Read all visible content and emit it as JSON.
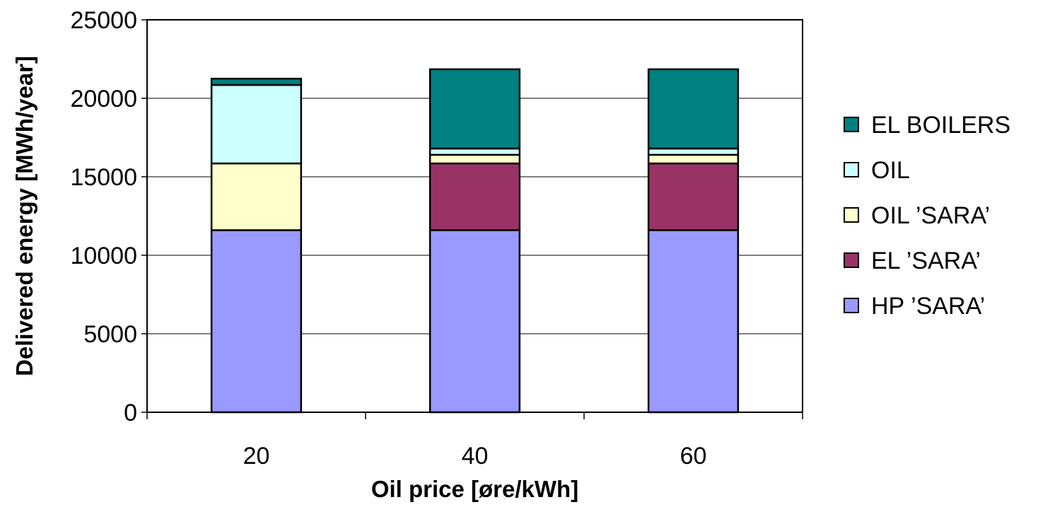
{
  "chart_data": {
    "type": "bar",
    "stacked": true,
    "categories": [
      "20",
      "40",
      "60"
    ],
    "xlabel": "Oil price [øre/kWh]",
    "ylabel": "Delivered energy [MWh/year]",
    "ylim": [
      0,
      25000
    ],
    "yticks": [
      0,
      5000,
      10000,
      15000,
      20000,
      25000
    ],
    "grid": true,
    "legend_position": "right",
    "series": [
      {
        "name": "HP 'SARA'",
        "color": "#9999ff",
        "values": [
          11600,
          11600,
          11600
        ]
      },
      {
        "name": "EL 'SARA'",
        "color": "#993366",
        "values": [
          0,
          4250,
          4250
        ]
      },
      {
        "name": "OIL 'SARA'",
        "color": "#ffffcc",
        "values": [
          4250,
          550,
          550
        ]
      },
      {
        "name": "OIL",
        "color": "#ccffff",
        "values": [
          5000,
          400,
          400
        ]
      },
      {
        "name": "EL BOILERS",
        "color": "#008080",
        "values": [
          400,
          5050,
          5050
        ]
      }
    ],
    "legend": [
      {
        "label": "EL BOILERS",
        "color": "#008080"
      },
      {
        "label": "OIL",
        "color": "#ccffff"
      },
      {
        "label": "OIL ’SARA’",
        "color": "#ffffcc"
      },
      {
        "label": "EL ’SARA’",
        "color": "#993366"
      },
      {
        "label": "HP ’SARA’",
        "color": "#9999ff"
      }
    ]
  }
}
